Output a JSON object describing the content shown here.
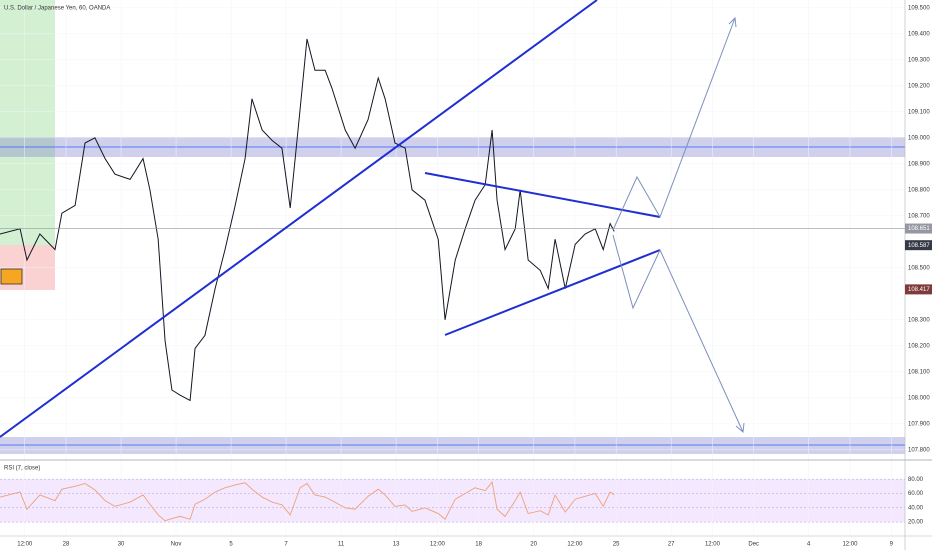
{
  "chart_data": [
    {
      "type": "line",
      "title": "U.S. Dollar / Japanese Yen, 60, OANDA",
      "color": "#131722",
      "x": [
        -2.4,
        -1.67,
        -1.42,
        -0.95,
        -0.4,
        -0.15,
        0.33,
        0.69,
        1.05,
        1.42,
        1.78,
        2.33,
        2.8,
        3.05,
        3.35,
        3.6,
        3.85,
        4.15,
        4.51,
        4.69,
        5.05,
        5.42,
        5.78,
        6.15,
        6.51,
        6.76,
        7.13,
        7.49,
        7.85,
        8.15,
        8.51,
        8.76,
        9.05,
        9.42,
        9.67,
        10.15,
        10.51,
        10.98,
        11.35,
        11.6,
        11.96,
        12.33,
        12.58,
        13.05,
        13.53,
        13.78,
        14.15,
        14.51,
        14.87,
        15.24,
        15.49,
        15.67,
        15.96,
        16.33,
        16.51,
        16.8,
        17.24,
        17.53,
        17.78,
        18.15,
        18.51,
        18.87,
        19.24,
        19.53,
        19.78,
        19.93
      ],
      "values": [
        108.63,
        108.65,
        108.53,
        108.63,
        108.57,
        108.71,
        108.74,
        108.98,
        109.0,
        108.92,
        108.86,
        108.84,
        108.92,
        108.8,
        108.61,
        108.22,
        108.03,
        108.01,
        107.99,
        108.19,
        108.24,
        108.42,
        108.57,
        108.74,
        108.92,
        109.15,
        109.03,
        108.99,
        108.96,
        108.73,
        109.11,
        109.38,
        109.26,
        109.26,
        109.19,
        109.03,
        108.96,
        109.07,
        109.23,
        109.15,
        108.98,
        108.96,
        108.8,
        108.76,
        108.61,
        108.3,
        108.53,
        108.65,
        108.76,
        108.82,
        109.03,
        108.76,
        108.57,
        108.65,
        108.8,
        108.53,
        108.49,
        108.42,
        108.61,
        108.42,
        108.59,
        108.63,
        108.65,
        108.57,
        108.67,
        108.64
      ],
      "xlim": [
        -2.4,
        30.5
      ],
      "xticks": [
        {
          "value": -1.5,
          "label": "12:00"
        },
        {
          "value": 0,
          "label": "28"
        },
        {
          "value": 2,
          "label": "30"
        },
        {
          "value": 4,
          "label": "Nov"
        },
        {
          "value": 6,
          "label": "5"
        },
        {
          "value": 8,
          "label": "7"
        },
        {
          "value": 10,
          "label": "11"
        },
        {
          "value": 12,
          "label": "13"
        },
        {
          "value": 13.5,
          "label": "12:00"
        },
        {
          "value": 15,
          "label": "18"
        },
        {
          "value": 17,
          "label": "20"
        },
        {
          "value": 18.5,
          "label": "12:00"
        },
        {
          "value": 20,
          "label": "25"
        },
        {
          "value": 22,
          "label": "27"
        },
        {
          "value": 23.5,
          "label": "12:00"
        },
        {
          "value": 25,
          "label": "Dec"
        },
        {
          "value": 27,
          "label": "4"
        },
        {
          "value": 28.5,
          "label": "12:00"
        },
        {
          "value": 30,
          "label": "9"
        }
      ],
      "ylim": [
        107.78,
        109.53
      ],
      "yticks": [
        {
          "value": 107.8,
          "label": "107.800"
        },
        {
          "value": 107.9,
          "label": "107.900"
        },
        {
          "value": 108.0,
          "label": "108.000"
        },
        {
          "value": 108.1,
          "label": "108.100"
        },
        {
          "value": 108.2,
          "label": "108.200"
        },
        {
          "value": 108.3,
          "label": "108.300"
        },
        {
          "value": 108.5,
          "label": "108.500"
        },
        {
          "value": 108.7,
          "label": "108.700"
        },
        {
          "value": 108.8,
          "label": "108.800"
        },
        {
          "value": 108.9,
          "label": "108.900"
        },
        {
          "value": 109.0,
          "label": "109.000"
        },
        {
          "value": 109.1,
          "label": "109.100"
        },
        {
          "value": 109.2,
          "label": "109.200"
        },
        {
          "value": 109.3,
          "label": "109.300"
        },
        {
          "value": 109.4,
          "label": "109.400"
        },
        {
          "value": 109.5,
          "label": "109.500"
        }
      ],
      "price_labels": [
        {
          "value": 108.651,
          "label": "108.651",
          "color": "#9598a1"
        },
        {
          "value": 108.587,
          "label": "108.587",
          "color": "#363a45"
        },
        {
          "value": 108.417,
          "label": "108.417",
          "color": "#7f3b3b"
        }
      ]
    },
    {
      "type": "line",
      "title": "RSI (7, close)",
      "color": "#f0a07a",
      "values": [
        55,
        62,
        38,
        58,
        50,
        66,
        70,
        74,
        65,
        50,
        42,
        48,
        58,
        45,
        30,
        22,
        25,
        28,
        24,
        45,
        52,
        62,
        68,
        72,
        75,
        66,
        55,
        48,
        44,
        30,
        68,
        74,
        58,
        55,
        50,
        40,
        38,
        56,
        66,
        58,
        42,
        44,
        35,
        40,
        32,
        24,
        52,
        60,
        68,
        64,
        76,
        38,
        28,
        50,
        62,
        32,
        36,
        30,
        58,
        34,
        52,
        56,
        60,
        42,
        62,
        58
      ],
      "ylim": [
        2,
        104
      ],
      "yticks": [
        {
          "value": 20,
          "label": "20.00"
        },
        {
          "value": 40,
          "label": "40.00"
        },
        {
          "value": 60,
          "label": "60.00"
        },
        {
          "value": 80,
          "label": "80.00"
        }
      ]
    }
  ]
}
